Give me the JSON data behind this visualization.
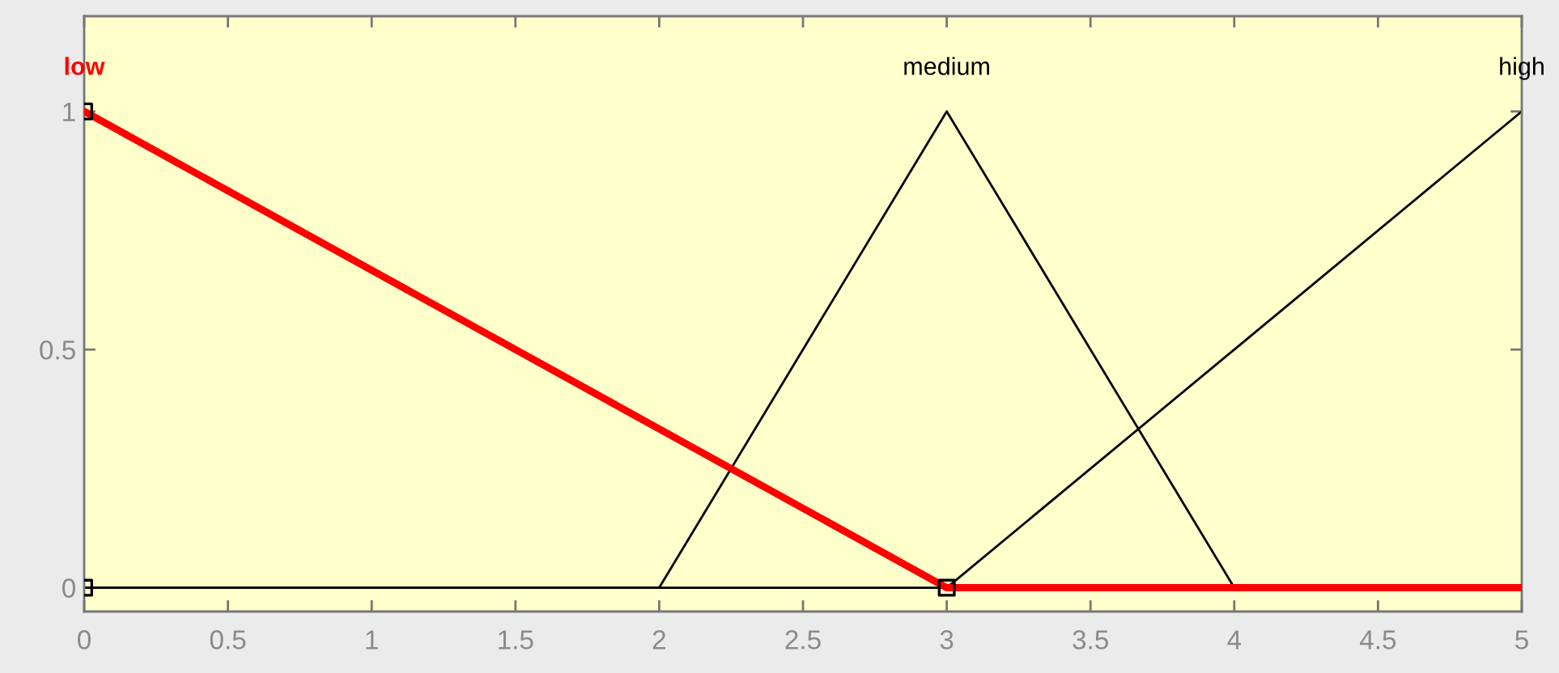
{
  "chart_data": {
    "type": "line",
    "xlim": [
      0,
      5
    ],
    "ylim": [
      -0.05,
      1.2
    ],
    "xticks": [
      0,
      0.5,
      1,
      1.5,
      2,
      2.5,
      3,
      3.5,
      4,
      4.5,
      5
    ],
    "yticks": [
      0,
      0.5,
      1
    ],
    "grid": false,
    "legend": false,
    "series": [
      {
        "name": "low",
        "color": "#ff0000",
        "x": [
          0,
          3,
          5
        ],
        "values": [
          1,
          0,
          0
        ]
      },
      {
        "name": "medium",
        "color": "#000000",
        "x": [
          0,
          2,
          3,
          4,
          5
        ],
        "values": [
          0,
          0,
          1,
          0,
          0
        ]
      },
      {
        "name": "high",
        "color": "#000000",
        "x": [
          0,
          3,
          5
        ],
        "values": [
          0,
          0,
          1
        ]
      },
      {
        "type": "scatter",
        "color": "#000000",
        "marker": "square",
        "x": [
          0,
          0,
          3
        ],
        "values": [
          1,
          0,
          0
        ]
      }
    ]
  }
}
